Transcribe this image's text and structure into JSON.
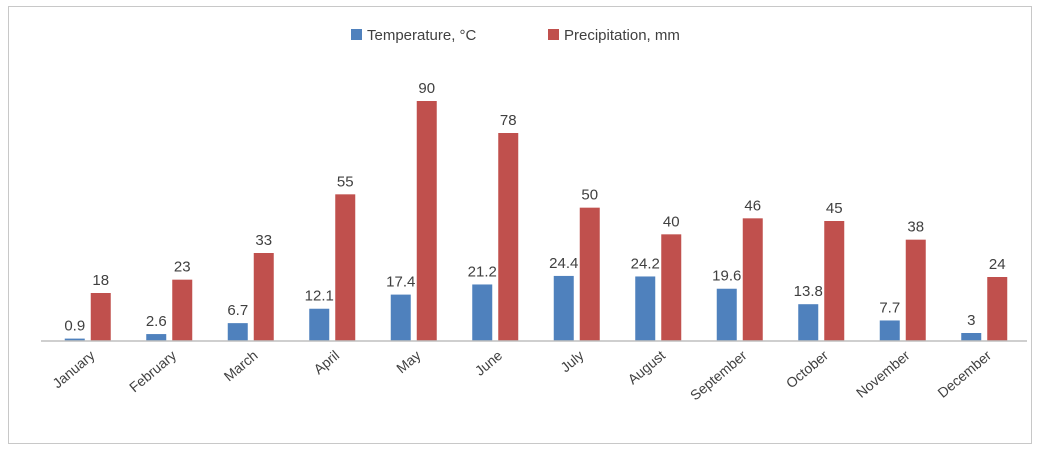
{
  "chart_data": {
    "type": "bar",
    "categories": [
      "January",
      "February",
      "March",
      "April",
      "May",
      "June",
      "July",
      "August",
      "September",
      "October",
      "November",
      "December"
    ],
    "series": [
      {
        "name": "Temperature, °C",
        "color": "#4f81bd",
        "values": [
          0.9,
          2.6,
          6.7,
          12.1,
          17.4,
          21.2,
          24.4,
          24.2,
          19.6,
          13.8,
          7.7,
          3
        ],
        "labels": [
          "0.9",
          "2.6",
          "6.7",
          "12.1",
          "17.4",
          "21.2",
          "24.4",
          "24.2",
          "19.6",
          "13.8",
          "7.7",
          "3"
        ]
      },
      {
        "name": "Precipitation, mm",
        "color": "#c0504d",
        "values": [
          18,
          23,
          33,
          55,
          90,
          78,
          50,
          40,
          46,
          45,
          38,
          24
        ],
        "labels": [
          "18",
          "23",
          "33",
          "55",
          "90",
          "78",
          "50",
          "40",
          "46",
          "45",
          "38",
          "24"
        ]
      }
    ],
    "ylim": [
      0,
      90
    ],
    "grid": false,
    "legend": "top-center",
    "axis_color": "#bfbfbf"
  }
}
